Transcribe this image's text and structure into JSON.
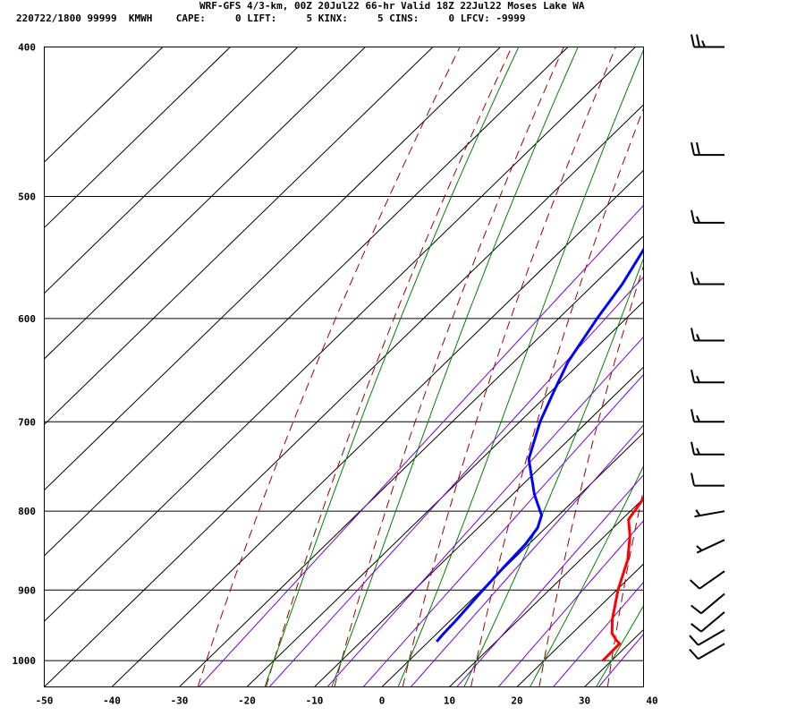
{
  "header": {
    "line1": "WRF-GFS 4/3-km, 00Z 20Jul22 66-hr Valid 18Z 22Jul22 Moses Lake WA",
    "line2": "220722/1800 99999  KMWH    CAPE:     0 LIFT:     5 KINX:     5 CINS:     0 LFCV: -9999"
  },
  "colors": {
    "temperature": "#ff0000",
    "dewpoint": "#0000ff",
    "dry_adiabat": "#9b0000",
    "moist_adiabat": "#008000",
    "mixing_ratio": "#7a00cc",
    "grid": "#000000",
    "wind_barb": "#000000"
  },
  "chart_data": {
    "type": "skew-t",
    "x_ticks": [
      "-50",
      "-40",
      "-30",
      "-20",
      "-10",
      "0",
      "10",
      "20",
      "30",
      "40"
    ],
    "y_ticks": [
      "400",
      "500",
      "600",
      "700",
      "800",
      "900",
      "1000"
    ],
    "x_ticks_values": [
      -50,
      -40,
      -30,
      -20,
      -10,
      0,
      10,
      20,
      30,
      40
    ],
    "y_ticks_values": [
      400,
      500,
      600,
      700,
      800,
      900,
      1000
    ],
    "xlim": [
      -50,
      40
    ],
    "ylim": [
      1040,
      400
    ],
    "y_scale": "log",
    "series": [
      {
        "key": "temperature",
        "points": [
          [
            1000,
            28.7
          ],
          [
            975,
            28.6
          ],
          [
            970,
            27.6
          ],
          [
            960,
            25.9
          ],
          [
            940,
            23.8
          ],
          [
            900,
            20.2
          ],
          [
            860,
            17.0
          ],
          [
            830,
            13.7
          ],
          [
            810,
            11.0
          ],
          [
            780,
            9.8
          ],
          [
            740,
            7.9
          ],
          [
            700,
            6.1
          ],
          [
            660,
            3.9
          ],
          [
            620,
            1.2
          ],
          [
            600,
            -0.6
          ],
          [
            560,
            -3.8
          ],
          [
            520,
            -8.2
          ],
          [
            480,
            -12.6
          ],
          [
            450,
            -16.2
          ],
          [
            420,
            -20.6
          ],
          [
            400,
            -23.4
          ]
        ]
      },
      {
        "key": "dewpoint",
        "points": [
          [
            972,
            1.2
          ],
          [
            960,
            1.0
          ],
          [
            940,
            0.8
          ],
          [
            900,
            0.2
          ],
          [
            870,
            -0.2
          ],
          [
            840,
            -0.5
          ],
          [
            820,
            -1.2
          ],
          [
            805,
            -2.5
          ],
          [
            780,
            -6.8
          ],
          [
            740,
            -13.0
          ],
          [
            700,
            -17.0
          ],
          [
            670,
            -19.5
          ],
          [
            640,
            -22.0
          ],
          [
            600,
            -24.3
          ],
          [
            570,
            -25.8
          ],
          [
            540,
            -28.0
          ],
          [
            510,
            -31.0
          ],
          [
            480,
            -35.0
          ],
          [
            450,
            -39.0
          ],
          [
            420,
            -43.0
          ],
          [
            400,
            -46.0
          ]
        ]
      }
    ],
    "wind_barbs": [
      {
        "p": 975,
        "dir": 240,
        "kt": 10
      },
      {
        "p": 955,
        "dir": 240,
        "kt": 10
      },
      {
        "p": 930,
        "dir": 230,
        "kt": 10
      },
      {
        "p": 905,
        "dir": 230,
        "kt": 10
      },
      {
        "p": 875,
        "dir": 235,
        "kt": 10
      },
      {
        "p": 835,
        "dir": 245,
        "kt": 5
      },
      {
        "p": 800,
        "dir": 260,
        "kt": 5
      },
      {
        "p": 770,
        "dir": 270,
        "kt": 10
      },
      {
        "p": 735,
        "dir": 270,
        "kt": 15
      },
      {
        "p": 700,
        "dir": 270,
        "kt": 15
      },
      {
        "p": 660,
        "dir": 270,
        "kt": 15
      },
      {
        "p": 620,
        "dir": 270,
        "kt": 15
      },
      {
        "p": 570,
        "dir": 270,
        "kt": 15
      },
      {
        "p": 520,
        "dir": 270,
        "kt": 15
      },
      {
        "p": 470,
        "dir": 270,
        "kt": 20
      },
      {
        "p": 400,
        "dir": 270,
        "kt": 25
      }
    ],
    "dry_adiabats_theta_c": [
      -30,
      -20,
      -10,
      0,
      10,
      20,
      30,
      40,
      50,
      60,
      70,
      80,
      90,
      100,
      110
    ],
    "moist_adiabats_thetae_c": [
      -20,
      -10,
      0,
      10,
      20,
      30
    ],
    "mixing_ratio_gkg": [
      0.4,
      1,
      2,
      3,
      5,
      8,
      12,
      20,
      30,
      45
    ],
    "grid": true
  }
}
